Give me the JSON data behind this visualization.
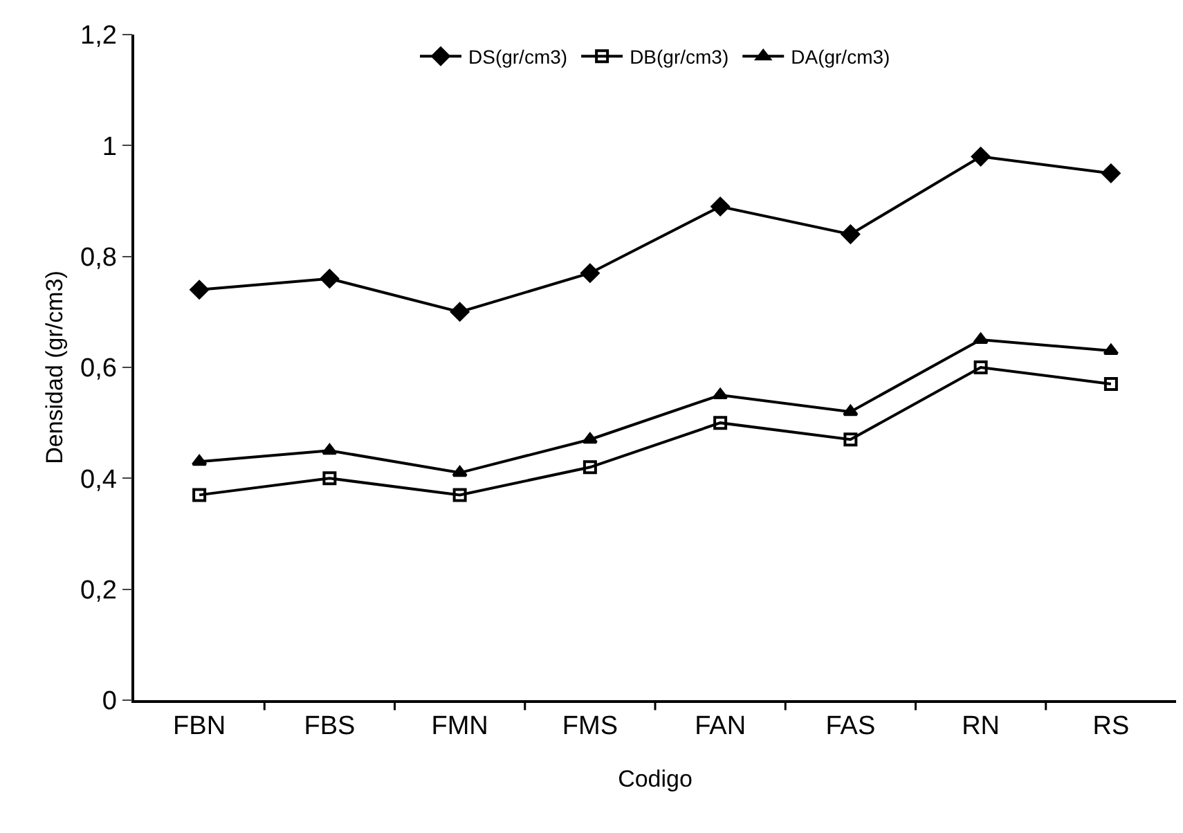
{
  "chart_data": {
    "type": "line",
    "xlabel": "Codigo",
    "ylabel": "Densidad (gr/cm3)",
    "categories": [
      "FBN",
      "FBS",
      "FMN",
      "FMS",
      "FAN",
      "FAS",
      "RN",
      "RS"
    ],
    "series": [
      {
        "name": "DS(gr/cm3)",
        "color": "#000000",
        "marker": "diamond",
        "values": [
          0.74,
          0.76,
          0.7,
          0.77,
          0.89,
          0.84,
          0.98,
          0.95
        ]
      },
      {
        "name": "DB(gr/cm3)",
        "color": "#000000",
        "marker": "square",
        "values": [
          0.37,
          0.4,
          0.37,
          0.42,
          0.5,
          0.47,
          0.6,
          0.57
        ]
      },
      {
        "name": "DA(gr/cm3)",
        "color": "#000000",
        "marker": "triangle",
        "values": [
          0.43,
          0.45,
          0.41,
          0.47,
          0.55,
          0.52,
          0.65,
          0.63
        ]
      }
    ],
    "ylim": [
      0,
      1.2
    ],
    "yticks": [
      0,
      {
        "value": 0.2,
        "label": "0,2"
      },
      {
        "value": 0.4,
        "label": "0,4"
      },
      {
        "value": 0.6,
        "label": "0,6"
      },
      {
        "value": 0.8,
        "label": "0,8"
      },
      1,
      {
        "value": 1.2,
        "label": "1,2"
      }
    ],
    "grid": false,
    "legend": "top",
    "line_style": "solid"
  }
}
